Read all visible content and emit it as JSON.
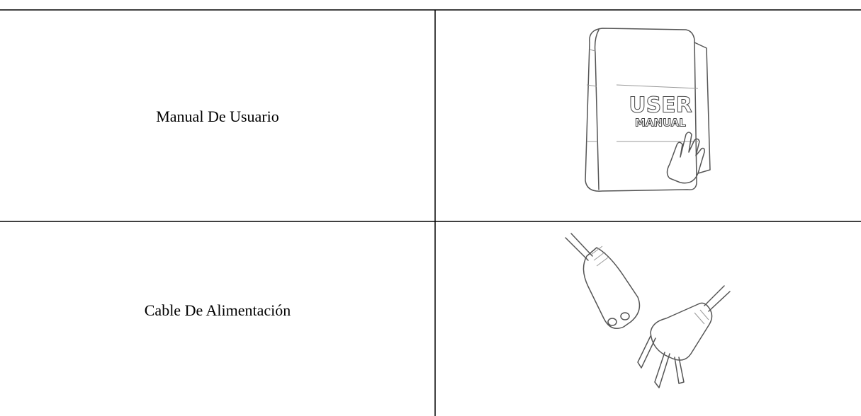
{
  "table": {
    "rows": [
      [
        "Manual De Usuario",
        [
          "USER",
          "MANUAL"
        ]
      ],
      [
        "Cable De Alimentación"
      ]
    ]
  }
}
